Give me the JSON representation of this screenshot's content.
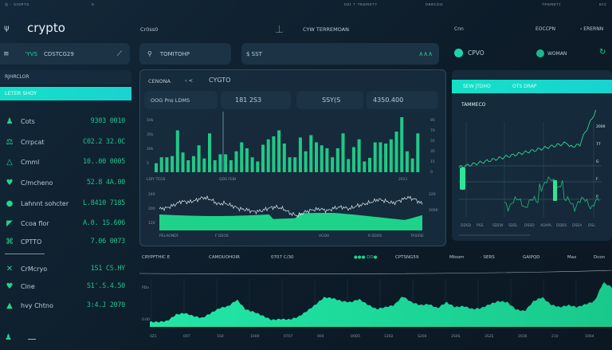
{
  "topbar": {
    "items": [
      "◎ · ɢɪᴏᴘᴛᴏ",
      "ᴅ",
      "ᴅᴢɪ ᴛ ᴛʀᴏᴍᴏᴛᴛ",
      "ᴅʀʀᴄᴏɪɪ",
      "ᴛᴘᴏᴍᴏᴛɪ",
      "ᴇᴄᴄ"
    ]
  },
  "header": {
    "menu_glyph": "ψ",
    "logo": "crypto",
    "nav1": "Cr0ss0",
    "nav2": "CYW TERREMOAN",
    "nav3": "Cnn",
    "nav4": "EOCCPN",
    "nav5": "‹ ERERNN"
  },
  "filters": {
    "left_tag": "'YVS",
    "left_label": "CDSTCG29",
    "search1": "TOMITOHP",
    "search2": "$ SST",
    "toggle1": "CPVO",
    "toggle2": "WOMAN"
  },
  "sidebar": {
    "header": "RJHRCLOR",
    "active": "LETER SHOY",
    "items": [
      {
        "icon": "♟",
        "label": "Cots",
        "value": "9303 0010"
      },
      {
        "icon": "⚖",
        "label": "Crrpcat",
        "value": "C02.2 32.0C"
      },
      {
        "icon": "△",
        "label": "Cmml",
        "value": "10..00 0005"
      },
      {
        "icon": "♥",
        "label": "C/mcheno",
        "value": "52.8 4A.00"
      },
      {
        "icon": "●",
        "label": "Lahnnt sohcter",
        "value": "L.8410 7185"
      },
      {
        "icon": "◤",
        "label": "Ccoa flor",
        "value": "A.0. 1S.606"
      },
      {
        "icon": "⌘",
        "label": "CPTTO",
        "value": "7.06 0073"
      },
      {
        "icon": "✕",
        "label": "CrMcryo",
        "value": "1S1 CS.HY"
      },
      {
        "icon": "♥",
        "label": "Cine",
        "value": "S1'.S.4.50"
      },
      {
        "icon": "▲",
        "label": "hvy Chtno",
        "value": "3:4.J 2070"
      }
    ],
    "footer_icon": "♟"
  },
  "center": {
    "title": "CENONA",
    "sep": "‹ <",
    "subtitle": "CYGTO",
    "cards": [
      "OOG Pns LDMS",
      "181 2S3",
      "SSY(S",
      "4350.400"
    ],
    "bars": [
      15,
      25,
      25,
      27,
      70,
      33,
      20,
      27,
      45,
      23,
      65,
      20,
      30,
      30,
      20,
      35,
      50,
      40,
      25,
      18,
      46,
      55,
      60,
      70,
      48,
      25,
      25,
      58,
      35,
      62,
      50,
      45,
      40,
      25,
      40,
      65,
      22,
      42,
      55,
      18,
      24,
      50,
      50,
      48,
      55,
      68,
      92,
      35,
      23,
      65
    ],
    "bar_y_left": [
      "50k",
      "35k",
      "20k",
      "5"
    ],
    "bar_y_right": [
      "95",
      "70",
      "55",
      "35",
      "15",
      "0"
    ],
    "bar_x": [
      "LDIY TEGS",
      "QDS FEBI",
      "2021"
    ],
    "line_y_left": [
      "240",
      "200",
      "120"
    ],
    "line_y_right": [
      "220",
      "2000"
    ],
    "line_x": [
      "PELAONDF",
      "F DEOS",
      "VGO0",
      "R.SDOS",
      "TASSSE"
    ],
    "line": [
      50,
      52,
      58,
      66,
      64,
      68,
      74,
      70,
      60,
      62,
      56,
      50,
      48,
      44,
      46,
      52,
      54,
      50,
      40,
      36,
      44,
      48,
      50,
      46,
      52,
      54,
      50,
      56,
      60,
      64,
      70,
      66,
      62,
      68,
      74,
      70,
      60
    ]
  },
  "right": {
    "tab1": "SEW JTDHO",
    "tab2": "OTS DRAP",
    "title": "TAMMECO",
    "labels": [
      "2000",
      "77",
      "G",
      "F",
      "P"
    ],
    "xlabels": [
      "DDSD",
      "PSS",
      "SDEW",
      "SDEL",
      "DSSD",
      "ADAPL",
      "DDDS",
      "DSEA",
      "DSL"
    ]
  },
  "bottom": {
    "labels": [
      "CRYPFTHIC E",
      "CAMOUOHOIR",
      "0707 C/30",
      "●●● DD●",
      "CPTSNG59",
      "Mloom",
      "· SERS",
      "GAIPQD",
      "Max",
      "Dcon"
    ],
    "y": [
      "PDo",
      "0.00"
    ],
    "x": [
      "0Z1",
      "00T",
      "1S0",
      "1000",
      "0707",
      "004",
      "00D5",
      "1202",
      "S200",
      "2S0S",
      "3S2E",
      "2036",
      "210",
      "1004"
    ],
    "area": [
      10,
      10,
      12,
      25,
      28,
      22,
      18,
      28,
      38,
      42,
      55,
      35,
      30,
      22,
      14,
      16,
      15,
      20,
      32,
      45,
      60,
      58,
      52,
      50,
      56,
      45,
      36,
      40,
      44,
      62,
      50,
      44,
      46,
      38,
      50,
      40,
      42,
      36,
      38,
      46,
      52,
      50,
      35,
      32,
      52,
      60,
      45,
      40,
      44,
      40,
      46,
      52,
      90,
      80
    ]
  },
  "colors": {
    "accent": "#1fe3a0",
    "cyan": "#14dcc8",
    "panel": "#182d3e",
    "bg": "#0f1f2c"
  }
}
